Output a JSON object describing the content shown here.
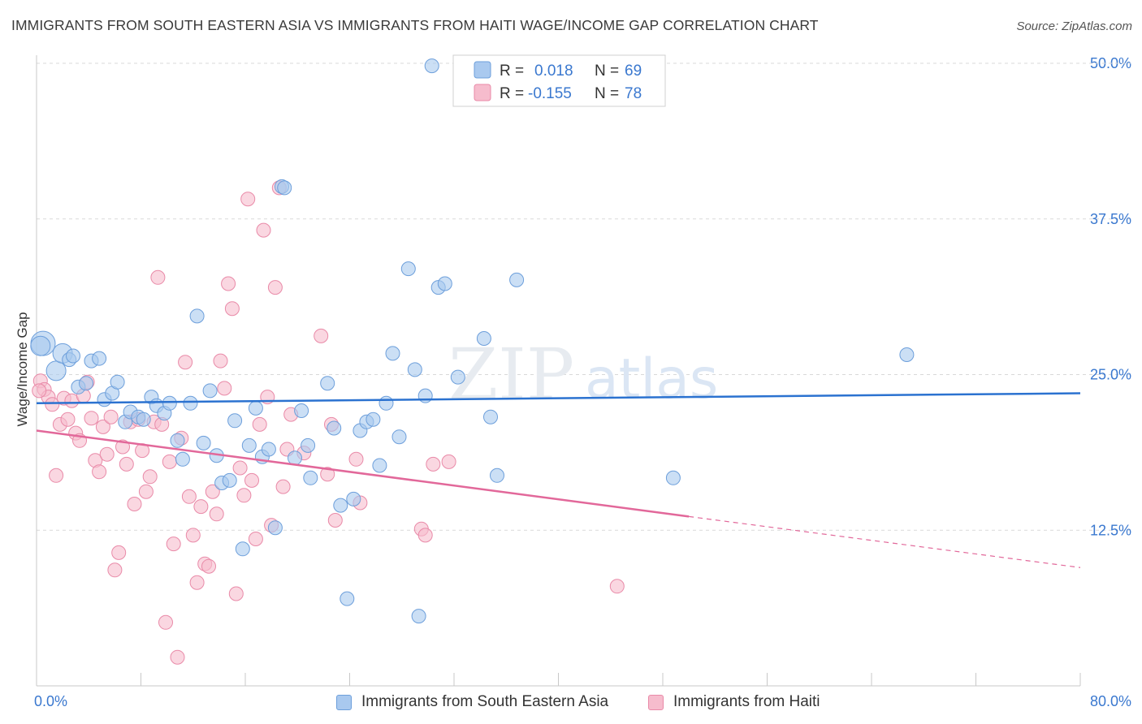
{
  "header": {
    "title": "IMMIGRANTS FROM SOUTH EASTERN ASIA VS IMMIGRANTS FROM HAITI WAGE/INCOME GAP CORRELATION CHART",
    "source": "Source: ZipAtlas.com"
  },
  "watermark": {
    "zip": "ZIP",
    "atlas": "atlas"
  },
  "legend_box": {
    "rows": [
      {
        "r_label": "R =",
        "r_value": "0.018",
        "n_label": "N =",
        "n_value": "69"
      },
      {
        "r_label": "R =",
        "r_value": "-0.155",
        "n_label": "N =",
        "n_value": "78"
      }
    ]
  },
  "colors": {
    "blue_fill": "#a9c9ef",
    "blue_stroke": "#6d9fdb",
    "blue_line": "#2b72d0",
    "pink_fill": "#f6bccd",
    "pink_stroke": "#e98aa8",
    "pink_line": "#e2689a",
    "value_text": "#3a78cf",
    "grid": "#d9d9d9"
  },
  "chart_data": {
    "type": "scatter",
    "title": "IMMIGRANTS FROM SOUTH EASTERN ASIA VS IMMIGRANTS FROM HAITI WAGE/INCOME GAP CORRELATION CHART",
    "xlabel": "",
    "ylabel": "Wage/Income Gap",
    "xlim": [
      0,
      80
    ],
    "ylim": [
      0,
      50
    ],
    "x_tick_labels": [
      "0.0%",
      "80.0%"
    ],
    "y_ticks": [
      12.5,
      25.0,
      37.5,
      50.0
    ],
    "y_tick_labels": [
      "12.5%",
      "25.0%",
      "37.5%",
      "50.0%"
    ],
    "grid": true,
    "legend_position": "bottom",
    "series": [
      {
        "name": "Immigrants from South Eastern Asia",
        "color": "#a9c9ef",
        "R": 0.018,
        "N": 69,
        "trend": {
          "x": [
            0,
            80
          ],
          "y": [
            22.7,
            23.5
          ]
        },
        "points": [
          [
            0.5,
            27.5
          ],
          [
            1.5,
            25.3
          ],
          [
            2.0,
            26.7
          ],
          [
            2.5,
            26.2
          ],
          [
            2.8,
            26.5
          ],
          [
            3.2,
            24.0
          ],
          [
            3.8,
            24.3
          ],
          [
            4.2,
            26.1
          ],
          [
            4.8,
            26.3
          ],
          [
            5.2,
            23.0
          ],
          [
            5.8,
            23.5
          ],
          [
            6.2,
            24.4
          ],
          [
            6.8,
            21.2
          ],
          [
            7.2,
            22.0
          ],
          [
            7.8,
            21.6
          ],
          [
            8.2,
            21.4
          ],
          [
            8.8,
            23.2
          ],
          [
            9.2,
            22.5
          ],
          [
            9.8,
            21.9
          ],
          [
            10.2,
            22.7
          ],
          [
            10.8,
            19.7
          ],
          [
            11.2,
            18.2
          ],
          [
            11.8,
            22.7
          ],
          [
            12.3,
            29.7
          ],
          [
            12.8,
            19.5
          ],
          [
            13.3,
            23.7
          ],
          [
            13.8,
            18.5
          ],
          [
            14.2,
            16.3
          ],
          [
            14.8,
            16.5
          ],
          [
            15.2,
            21.3
          ],
          [
            15.8,
            11.0
          ],
          [
            16.3,
            19.3
          ],
          [
            16.8,
            22.3
          ],
          [
            17.3,
            18.4
          ],
          [
            17.8,
            19.0
          ],
          [
            18.3,
            12.7
          ],
          [
            18.8,
            40.1
          ],
          [
            19.0,
            40.0
          ],
          [
            19.8,
            18.3
          ],
          [
            20.3,
            22.1
          ],
          [
            20.8,
            19.3
          ],
          [
            21.0,
            16.7
          ],
          [
            22.3,
            24.3
          ],
          [
            22.8,
            20.7
          ],
          [
            23.3,
            14.5
          ],
          [
            23.8,
            7.0
          ],
          [
            24.3,
            15.0
          ],
          [
            24.8,
            20.5
          ],
          [
            25.3,
            21.2
          ],
          [
            25.8,
            21.4
          ],
          [
            26.3,
            17.7
          ],
          [
            26.8,
            22.7
          ],
          [
            27.3,
            26.7
          ],
          [
            27.8,
            20.0
          ],
          [
            28.5,
            33.5
          ],
          [
            29.0,
            25.4
          ],
          [
            29.3,
            5.6
          ],
          [
            29.8,
            23.3
          ],
          [
            30.3,
            49.8
          ],
          [
            30.8,
            32.0
          ],
          [
            31.3,
            32.3
          ],
          [
            32.3,
            24.8
          ],
          [
            34.3,
            27.9
          ],
          [
            34.8,
            21.6
          ],
          [
            35.3,
            16.9
          ],
          [
            36.8,
            32.6
          ],
          [
            48.8,
            16.7
          ],
          [
            66.7,
            26.6
          ],
          [
            0.3,
            27.3
          ]
        ]
      },
      {
        "name": "Immigrants from Haiti",
        "color": "#f6bccd",
        "R": -0.155,
        "N": 78,
        "trend": {
          "x": [
            0,
            50
          ],
          "y": [
            20.5,
            13.6
          ]
        },
        "trend_dashed": {
          "x": [
            50,
            80
          ],
          "y": [
            13.6,
            9.5
          ]
        },
        "points": [
          [
            0.3,
            24.5
          ],
          [
            0.6,
            23.8
          ],
          [
            0.9,
            23.2
          ],
          [
            1.2,
            22.6
          ],
          [
            1.5,
            16.9
          ],
          [
            1.8,
            21.0
          ],
          [
            2.1,
            23.1
          ],
          [
            2.4,
            21.4
          ],
          [
            2.7,
            22.9
          ],
          [
            3.0,
            20.3
          ],
          [
            3.3,
            19.7
          ],
          [
            3.6,
            23.3
          ],
          [
            3.9,
            24.4
          ],
          [
            4.2,
            21.5
          ],
          [
            4.5,
            18.1
          ],
          [
            4.8,
            17.2
          ],
          [
            5.1,
            20.8
          ],
          [
            5.4,
            18.6
          ],
          [
            5.7,
            21.6
          ],
          [
            6.0,
            9.3
          ],
          [
            6.3,
            10.7
          ],
          [
            6.6,
            19.2
          ],
          [
            6.9,
            17.8
          ],
          [
            7.2,
            21.2
          ],
          [
            7.5,
            14.6
          ],
          [
            7.8,
            21.4
          ],
          [
            8.1,
            18.9
          ],
          [
            8.4,
            15.6
          ],
          [
            8.7,
            16.8
          ],
          [
            9.0,
            21.2
          ],
          [
            9.3,
            32.8
          ],
          [
            9.6,
            21.0
          ],
          [
            9.9,
            5.1
          ],
          [
            10.2,
            18.0
          ],
          [
            10.5,
            11.4
          ],
          [
            10.8,
            2.3
          ],
          [
            11.1,
            19.9
          ],
          [
            11.4,
            26.0
          ],
          [
            11.7,
            15.2
          ],
          [
            12.0,
            12.1
          ],
          [
            12.3,
            8.3
          ],
          [
            12.6,
            14.4
          ],
          [
            12.9,
            9.8
          ],
          [
            13.2,
            9.6
          ],
          [
            13.5,
            15.6
          ],
          [
            13.8,
            13.8
          ],
          [
            14.1,
            26.1
          ],
          [
            14.4,
            23.9
          ],
          [
            14.7,
            32.3
          ],
          [
            15.0,
            30.3
          ],
          [
            15.3,
            7.4
          ],
          [
            15.6,
            17.5
          ],
          [
            15.9,
            15.3
          ],
          [
            16.2,
            39.1
          ],
          [
            16.5,
            16.5
          ],
          [
            16.8,
            11.8
          ],
          [
            17.1,
            21.0
          ],
          [
            17.4,
            36.6
          ],
          [
            17.7,
            23.2
          ],
          [
            18.0,
            12.9
          ],
          [
            18.3,
            32.0
          ],
          [
            18.6,
            40.0
          ],
          [
            18.9,
            16.0
          ],
          [
            19.2,
            19.0
          ],
          [
            19.5,
            21.8
          ],
          [
            20.5,
            18.7
          ],
          [
            21.8,
            28.1
          ],
          [
            22.3,
            17.0
          ],
          [
            22.6,
            21.0
          ],
          [
            22.9,
            13.3
          ],
          [
            24.5,
            18.2
          ],
          [
            24.8,
            14.7
          ],
          [
            29.5,
            12.6
          ],
          [
            29.8,
            12.1
          ],
          [
            30.4,
            17.8
          ],
          [
            31.6,
            18.0
          ],
          [
            44.5,
            8.0
          ],
          [
            0.2,
            23.7
          ]
        ]
      }
    ]
  }
}
